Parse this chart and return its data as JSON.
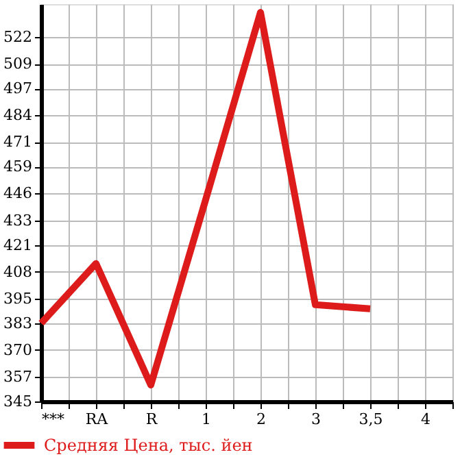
{
  "chart_data": {
    "type": "line",
    "categories": [
      "***",
      "RA",
      "R",
      "1",
      "2",
      "3",
      "3,5",
      "4"
    ],
    "series": [
      {
        "name": "Средняя Цена, тыс. йен",
        "color": "#dd1b1b",
        "values": [
          383,
          412,
          353,
          443,
          534,
          392,
          390,
          null
        ]
      }
    ],
    "ylim": [
      345,
      538
    ],
    "yticks": [
      345,
      357,
      370,
      383,
      395,
      408,
      421,
      433,
      446,
      459,
      471,
      484,
      497,
      509,
      522
    ],
    "grid": true,
    "legend": "bottom left",
    "marker": "none",
    "line_style": "solid"
  }
}
